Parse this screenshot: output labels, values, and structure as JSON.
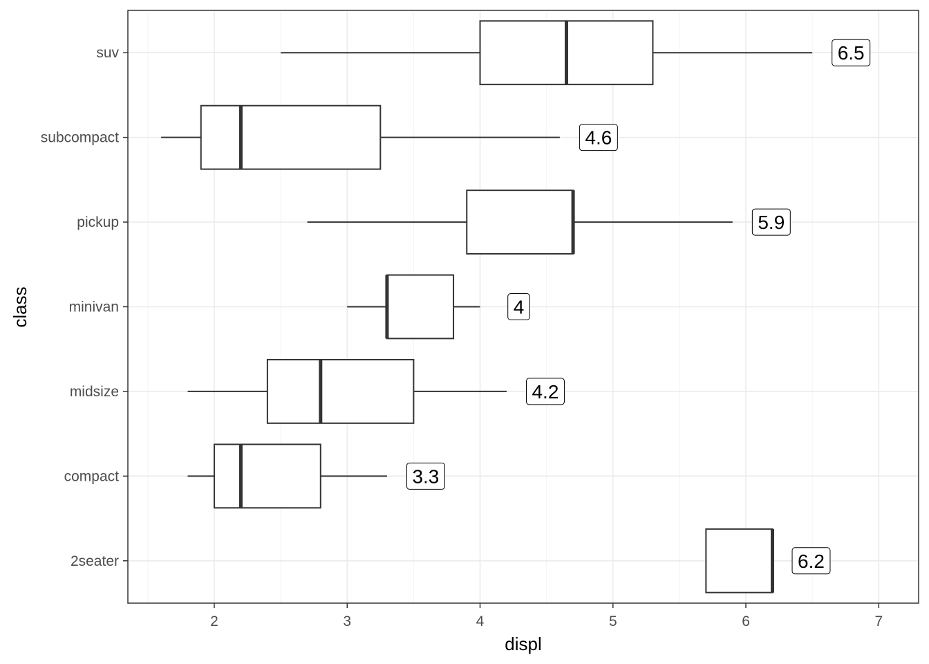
{
  "chart_data": {
    "type": "boxplot",
    "orientation": "horizontal",
    "xlabel": "displ",
    "ylabel": "class",
    "xlim": [
      1.35,
      7.3
    ],
    "x_ticks": [
      2,
      3,
      4,
      5,
      6,
      7
    ],
    "x_minor_ticks": [
      1.5,
      2.5,
      3.5,
      4.5,
      5.5,
      6.5
    ],
    "grid": true,
    "categories": [
      "2seater",
      "compact",
      "midsize",
      "minivan",
      "pickup",
      "subcompact",
      "suv"
    ],
    "boxes": [
      {
        "category": "2seater",
        "min": 5.7,
        "q1": 5.7,
        "median": 6.2,
        "q3": 6.2,
        "max": 6.2,
        "label": "6.2"
      },
      {
        "category": "compact",
        "min": 1.8,
        "q1": 2.0,
        "median": 2.2,
        "q3": 2.8,
        "max": 3.3,
        "label": "3.3"
      },
      {
        "category": "midsize",
        "min": 1.8,
        "q1": 2.4,
        "median": 2.8,
        "q3": 3.5,
        "max": 4.2,
        "label": "4.2"
      },
      {
        "category": "minivan",
        "min": 3.0,
        "q1": 3.3,
        "median": 3.3,
        "q3": 3.8,
        "max": 4.0,
        "label": "4"
      },
      {
        "category": "pickup",
        "min": 2.7,
        "q1": 3.9,
        "median": 4.7,
        "q3": 4.7,
        "max": 5.9,
        "label": "5.9"
      },
      {
        "category": "subcompact",
        "min": 1.6,
        "q1": 1.9,
        "median": 2.2,
        "q3": 3.25,
        "max": 4.6,
        "label": "4.6"
      },
      {
        "category": "suv",
        "min": 2.5,
        "q1": 4.0,
        "median": 4.65,
        "q3": 5.3,
        "max": 6.5,
        "label": "6.5"
      }
    ],
    "colors": {
      "box_outline": "#333333",
      "box_fill": "#ffffff",
      "grid_major": "#ebebeb",
      "grid_minor": "#f4f4f4",
      "panel_border": "#333333",
      "tick_text": "#4d4d4d"
    }
  }
}
